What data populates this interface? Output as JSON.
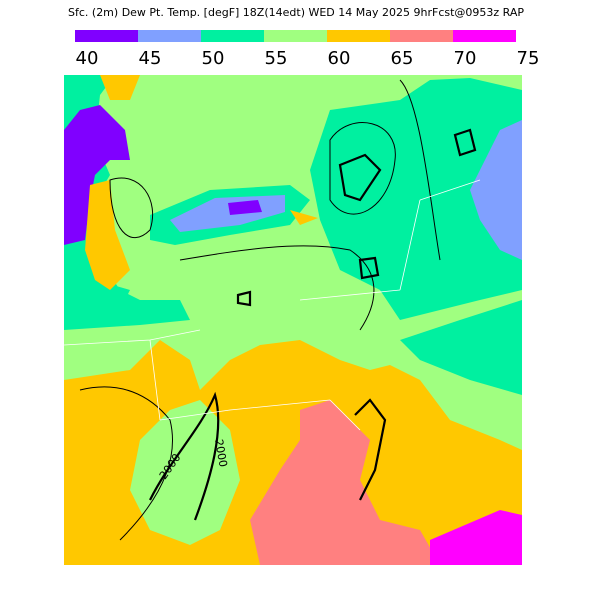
{
  "header": {
    "title": "Sfc. (2m) Dew Pt. Temp. [degF] 18Z(14edt) WED 14 May 2025 9hrFcst@0953z RAP"
  },
  "colorbar": {
    "levels": [
      40,
      45,
      50,
      55,
      60,
      65,
      70,
      75
    ],
    "colors": [
      "#8000ff",
      "#80a0ff",
      "#00f0a0",
      "#a0ff80",
      "#ffc800",
      "#ff8080",
      "#ff00ff"
    ]
  },
  "map": {
    "contour_labels": [
      "2000",
      "2000"
    ]
  }
}
